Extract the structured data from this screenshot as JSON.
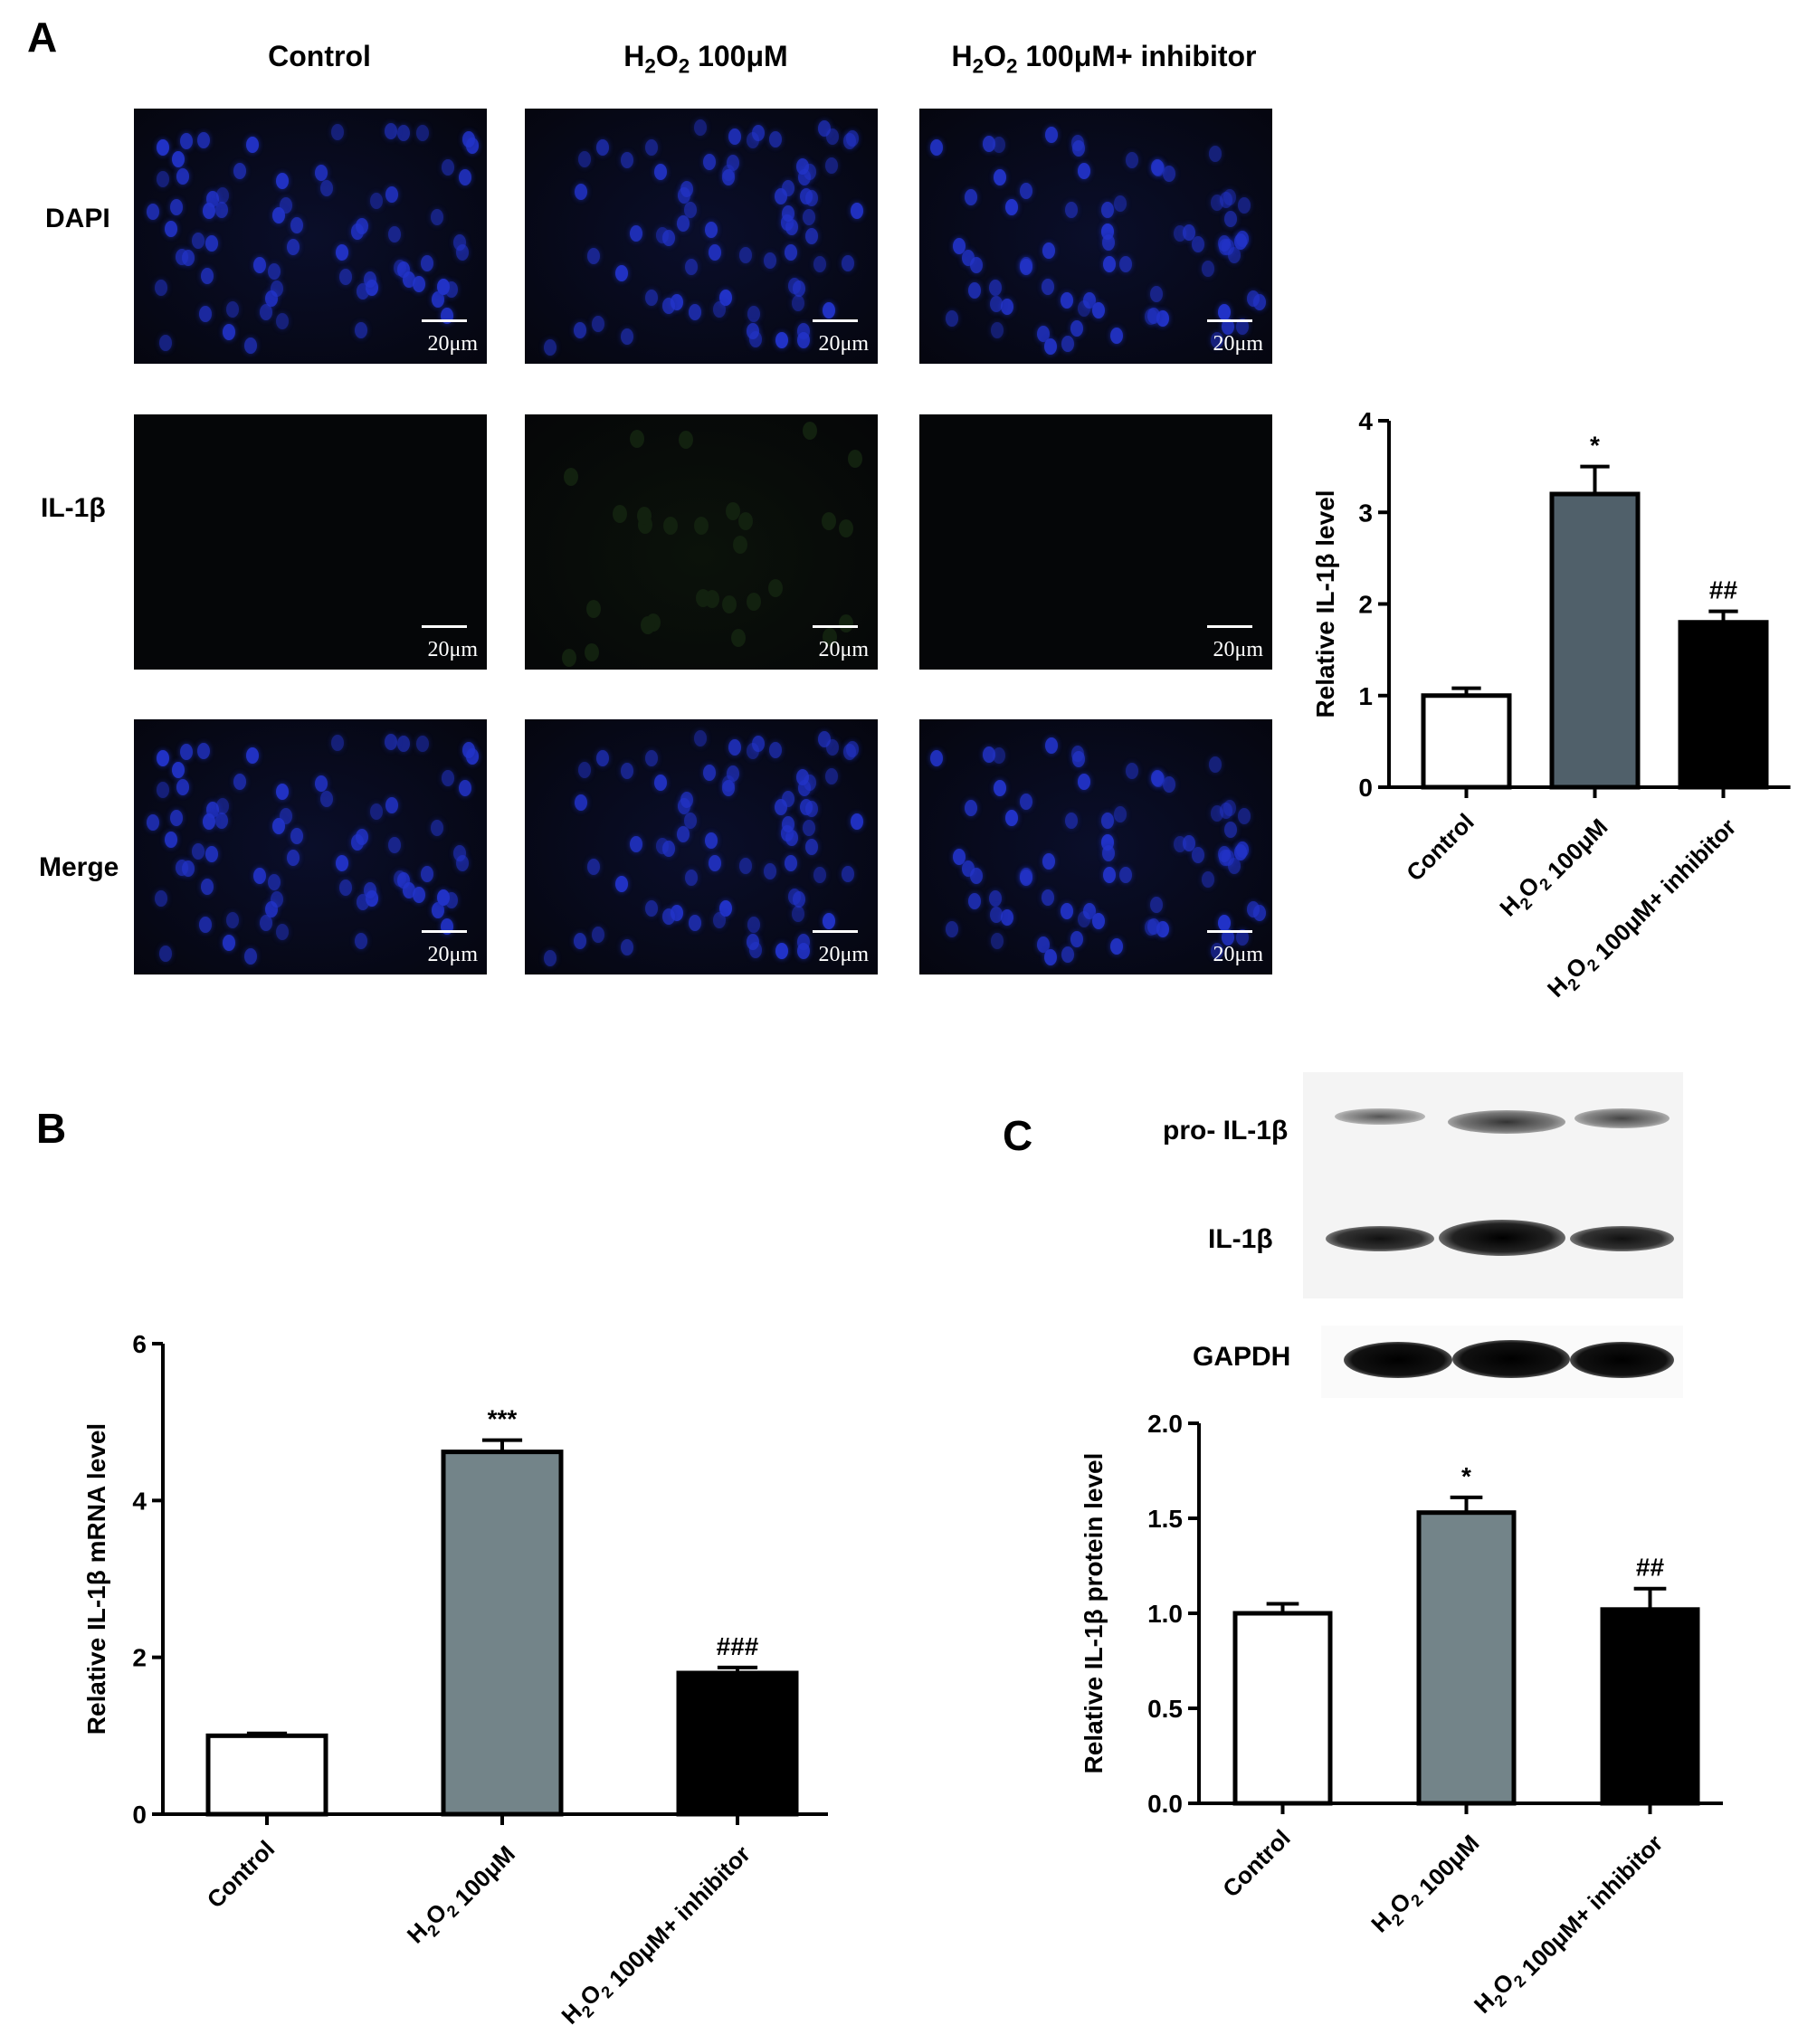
{
  "panel_a": {
    "letter": "A",
    "columns": [
      "Control",
      "H2O2 100μM",
      "H2O2 100μM+ inhibitor"
    ],
    "rows": [
      "DAPI",
      "IL-1β",
      "Merge"
    ],
    "scale_label": "20μm"
  },
  "panel_b": {
    "letter": "B"
  },
  "panel_c": {
    "letter": "C",
    "blot_labels": [
      "pro- IL-1β",
      "IL-1β",
      "GAPDH"
    ]
  },
  "colors": {
    "control": "#ffffff",
    "h2o2_a": "#50606a",
    "h2o2_bc": "#738489",
    "inhibitor": "#000000",
    "dapi": "#2233c8"
  },
  "chart_data": [
    {
      "id": "A-chart",
      "type": "bar",
      "categories": [
        "Control",
        "H2O2 100μM",
        "H2O2 100μM+ inhibitor"
      ],
      "values": [
        1.0,
        3.2,
        1.8
      ],
      "errors": [
        0.08,
        0.3,
        0.12
      ],
      "annotations": [
        "",
        "*",
        "##"
      ],
      "ylabel": "Relative IL-1β level",
      "ylim": [
        0,
        4
      ],
      "yticks": [
        "0",
        "1",
        "2",
        "3",
        "4"
      ]
    },
    {
      "id": "B-chart",
      "type": "bar",
      "categories": [
        "Control",
        "H2O2 100μM",
        "H2O2 100μM+ inhibitor"
      ],
      "values": [
        1.0,
        4.62,
        1.8
      ],
      "errors": [
        0.03,
        0.15,
        0.07
      ],
      "annotations": [
        "",
        "***",
        "###"
      ],
      "ylabel": "Relative IL-1β mRNA level",
      "ylim": [
        0,
        6
      ],
      "yticks": [
        "0",
        "2",
        "4",
        "6"
      ]
    },
    {
      "id": "C-chart",
      "type": "bar",
      "categories": [
        "Control",
        "H2O2 100μM",
        "H2O2 100μM+ inhibitor"
      ],
      "values": [
        1.0,
        1.53,
        1.02
      ],
      "errors": [
        0.05,
        0.08,
        0.11
      ],
      "annotations": [
        "",
        "*",
        "##"
      ],
      "ylabel": "Relative IL-1β protein level",
      "ylim": [
        0,
        2.0
      ],
      "yticks": [
        "0.0",
        "0.5",
        "1.0",
        "1.5",
        "2.0"
      ]
    }
  ]
}
